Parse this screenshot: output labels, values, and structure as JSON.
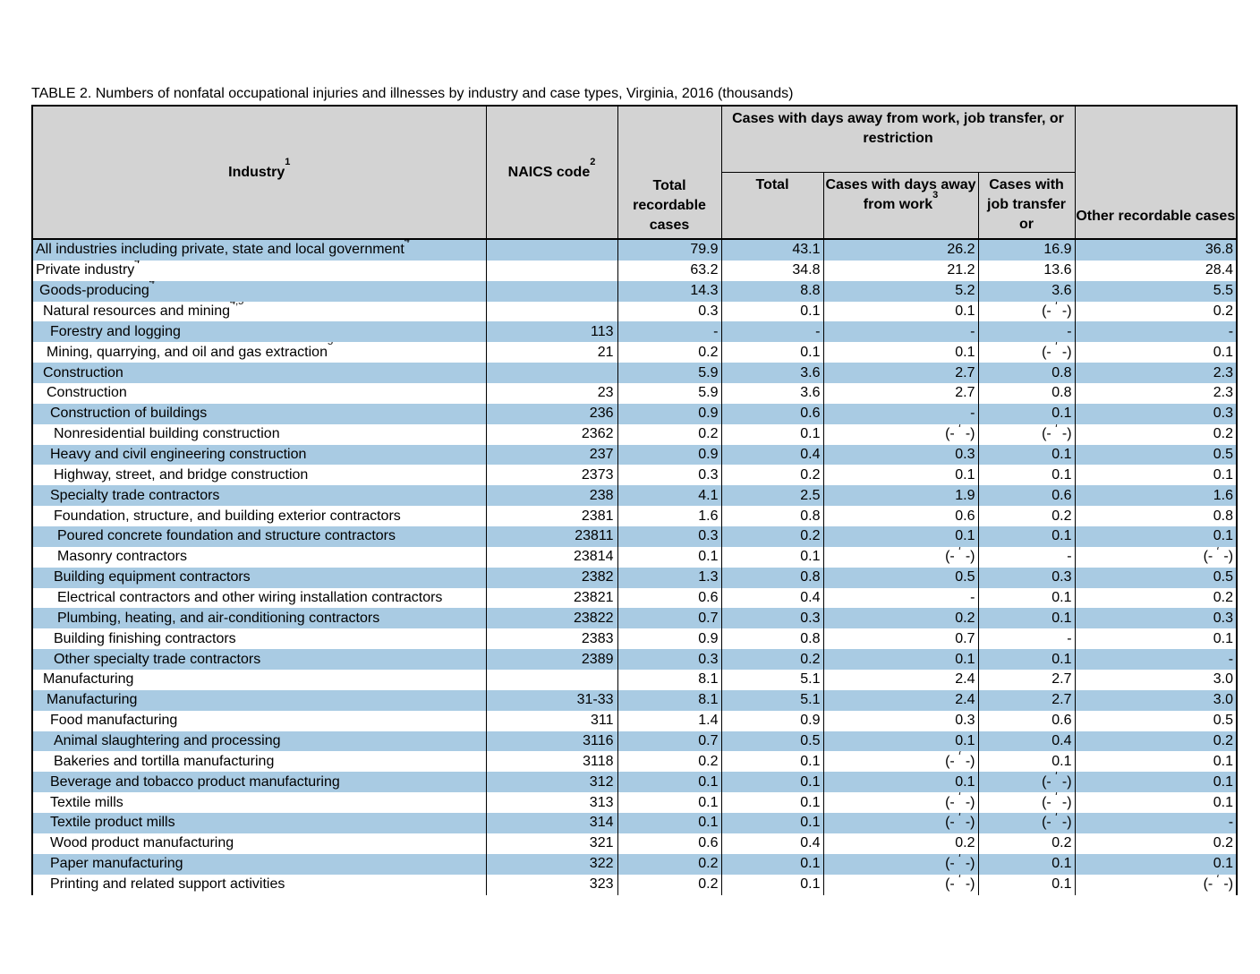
{
  "title": "TABLE 2. Numbers of nonfatal occupational injuries and illnesses by industry and case types, Virginia, 2016 (thousands)",
  "colors": {
    "row_highlight": "#A9CBE3",
    "header_bg": "#D3D3D3",
    "border": "#000000"
  },
  "header": {
    "industry": {
      "label": "Industry",
      "sup": "1"
    },
    "naics": {
      "label": "NAICS code",
      "sup": "2"
    },
    "total_recordable": {
      "label": "Total recordable cases"
    },
    "group": {
      "label": "Cases with days away from work, job transfer, or restriction"
    },
    "sub_total": {
      "label": "Total"
    },
    "days_away": {
      "label": "Cases with days away from work",
      "sup": "3"
    },
    "job_transfer": {
      "label": "Cases with job transfer or"
    },
    "other": {
      "label": "Other recordable cases"
    }
  },
  "footnote_cell_symbol": "7",
  "rows": [
    {
      "industry": "All industries including private, state and local government",
      "sup": "4",
      "indent": 0,
      "naics": "",
      "values": [
        "79.9",
        "43.1",
        "26.2",
        "16.9",
        "36.8"
      ]
    },
    {
      "industry": "Private industry",
      "sup": "4",
      "indent": 0,
      "naics": "",
      "values": [
        "63.2",
        "34.8",
        "21.2",
        "13.6",
        "28.4"
      ]
    },
    {
      "industry": "Goods-producing",
      "sup": "4",
      "indent": 1,
      "naics": "",
      "values": [
        "14.3",
        "8.8",
        "5.2",
        "3.6",
        "5.5"
      ]
    },
    {
      "industry": "Natural resources and mining",
      "sup": "4,5",
      "indent": 2,
      "naics": "",
      "values": [
        "0.3",
        "0.1",
        "0.1",
        "(-7-)",
        "0.2"
      ]
    },
    {
      "industry": "Forestry and logging",
      "sup": "",
      "indent": 4,
      "naics": "113",
      "values": [
        "-",
        "-",
        "-",
        "-",
        "-"
      ]
    },
    {
      "industry": "Mining, quarrying, and oil and gas extraction",
      "sup": "5",
      "indent": 3,
      "naics": "21",
      "values": [
        "0.2",
        "0.1",
        "0.1",
        "(-7-)",
        "0.1"
      ]
    },
    {
      "industry": "Construction",
      "sup": "",
      "indent": 2,
      "naics": "",
      "values": [
        "5.9",
        "3.6",
        "2.7",
        "0.8",
        "2.3"
      ]
    },
    {
      "industry": "Construction",
      "sup": "",
      "indent": 3,
      "naics": "23",
      "values": [
        "5.9",
        "3.6",
        "2.7",
        "0.8",
        "2.3"
      ]
    },
    {
      "industry": "Construction of buildings",
      "sup": "",
      "indent": 4,
      "naics": "236",
      "values": [
        "0.9",
        "0.6",
        "-",
        "0.1",
        "0.3"
      ]
    },
    {
      "industry": "Nonresidential building construction",
      "sup": "",
      "indent": 5,
      "naics": "2362",
      "values": [
        "0.2",
        "0.1",
        "(-7-)",
        "(-7-)",
        "0.2"
      ]
    },
    {
      "industry": "Heavy and civil engineering construction",
      "sup": "",
      "indent": 4,
      "naics": "237",
      "values": [
        "0.9",
        "0.4",
        "0.3",
        "0.1",
        "0.5"
      ]
    },
    {
      "industry": "Highway, street, and bridge construction",
      "sup": "",
      "indent": 5,
      "naics": "2373",
      "values": [
        "0.3",
        "0.2",
        "0.1",
        "0.1",
        "0.1"
      ]
    },
    {
      "industry": "Specialty trade contractors",
      "sup": "",
      "indent": 4,
      "naics": "238",
      "values": [
        "4.1",
        "2.5",
        "1.9",
        "0.6",
        "1.6"
      ]
    },
    {
      "industry": "Foundation, structure, and building exterior contractors",
      "sup": "",
      "indent": 5,
      "naics": "2381",
      "values": [
        "1.6",
        "0.8",
        "0.6",
        "0.2",
        "0.8"
      ]
    },
    {
      "industry": "Poured concrete foundation and structure contractors",
      "sup": "",
      "indent": 6,
      "naics": "23811",
      "values": [
        "0.3",
        "0.2",
        "0.1",
        "0.1",
        "0.1"
      ]
    },
    {
      "industry": "Masonry contractors",
      "sup": "",
      "indent": 6,
      "naics": "23814",
      "values": [
        "0.1",
        "0.1",
        "(-7-)",
        "-",
        "(-7-)"
      ]
    },
    {
      "industry": "Building equipment contractors",
      "sup": "",
      "indent": 5,
      "naics": "2382",
      "values": [
        "1.3",
        "0.8",
        "0.5",
        "0.3",
        "0.5"
      ]
    },
    {
      "industry": "Electrical contractors and other wiring installation contractors",
      "sup": "",
      "indent": 6,
      "naics": "23821",
      "values": [
        "0.6",
        "0.4",
        "-",
        "0.1",
        "0.2"
      ]
    },
    {
      "industry": "Plumbing, heating, and air-conditioning contractors",
      "sup": "",
      "indent": 6,
      "naics": "23822",
      "values": [
        "0.7",
        "0.3",
        "0.2",
        "0.1",
        "0.3"
      ]
    },
    {
      "industry": "Building finishing contractors",
      "sup": "",
      "indent": 5,
      "naics": "2383",
      "values": [
        "0.9",
        "0.8",
        "0.7",
        "-",
        "0.1"
      ]
    },
    {
      "industry": "Other specialty trade contractors",
      "sup": "",
      "indent": 5,
      "naics": "2389",
      "values": [
        "0.3",
        "0.2",
        "0.1",
        "0.1",
        "-"
      ]
    },
    {
      "industry": "Manufacturing",
      "sup": "",
      "indent": 2,
      "naics": "",
      "values": [
        "8.1",
        "5.1",
        "2.4",
        "2.7",
        "3.0"
      ]
    },
    {
      "industry": "Manufacturing",
      "sup": "",
      "indent": 3,
      "naics": "31-33",
      "values": [
        "8.1",
        "5.1",
        "2.4",
        "2.7",
        "3.0"
      ]
    },
    {
      "industry": "Food manufacturing",
      "sup": "",
      "indent": 4,
      "naics": "311",
      "values": [
        "1.4",
        "0.9",
        "0.3",
        "0.6",
        "0.5"
      ]
    },
    {
      "industry": "Animal slaughtering and processing",
      "sup": "",
      "indent": 5,
      "naics": "3116",
      "values": [
        "0.7",
        "0.5",
        "0.1",
        "0.4",
        "0.2"
      ]
    },
    {
      "industry": "Bakeries and tortilla manufacturing",
      "sup": "",
      "indent": 5,
      "naics": "3118",
      "values": [
        "0.2",
        "0.1",
        "(-7-)",
        "0.1",
        "0.1"
      ]
    },
    {
      "industry": "Beverage and tobacco product manufacturing",
      "sup": "",
      "indent": 4,
      "naics": "312",
      "values": [
        "0.1",
        "0.1",
        "0.1",
        "(-7-)",
        "0.1"
      ]
    },
    {
      "industry": "Textile mills",
      "sup": "",
      "indent": 4,
      "naics": "313",
      "values": [
        "0.1",
        "0.1",
        "(-7-)",
        "(-7-)",
        "0.1"
      ]
    },
    {
      "industry": "Textile product mills",
      "sup": "",
      "indent": 4,
      "naics": "314",
      "values": [
        "0.1",
        "0.1",
        "(-7-)",
        "(-7-)",
        "-"
      ]
    },
    {
      "industry": "Wood product manufacturing",
      "sup": "",
      "indent": 4,
      "naics": "321",
      "values": [
        "0.6",
        "0.4",
        "0.2",
        "0.2",
        "0.2"
      ]
    },
    {
      "industry": "Paper manufacturing",
      "sup": "",
      "indent": 4,
      "naics": "322",
      "values": [
        "0.2",
        "0.1",
        "(-7-)",
        "0.1",
        "0.1"
      ]
    },
    {
      "industry": "Printing and related support activities",
      "sup": "",
      "indent": 4,
      "naics": "323",
      "values": [
        "0.2",
        "0.1",
        "(-7-)",
        "0.1",
        "(-7-)"
      ]
    }
  ]
}
